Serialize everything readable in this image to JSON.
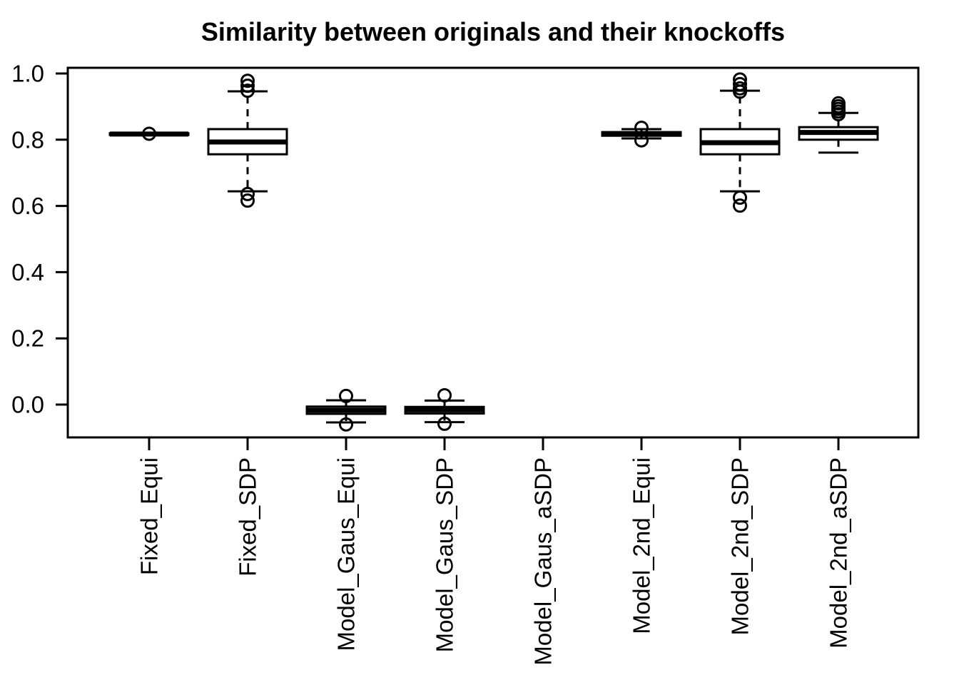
{
  "chart_data": {
    "type": "boxplot",
    "title": "Similarity between originals and their knockoffs",
    "xlabel": "",
    "ylabel": "",
    "grid": false,
    "legend": "none",
    "ylim": [
      -0.1,
      1.02
    ],
    "y_ticks": [
      0.0,
      0.2,
      0.4,
      0.6,
      0.8,
      1.0
    ],
    "y_tick_labels": [
      "0.0",
      "0.2",
      "0.4",
      "0.6",
      "0.8",
      "1.0"
    ],
    "categories": [
      "Fixed_Equi",
      "Fixed_SDP",
      "Model_Gaus_Equi",
      "Model_Gaus_SDP",
      "Model_Gaus_aSDP",
      "Model_2nd_Equi",
      "Model_2nd_SDP",
      "Model_2nd_aSDP"
    ],
    "colors": {
      "stroke": "#000000",
      "box_fill": "#ffffff",
      "background": "#ffffff"
    },
    "boxes": [
      {
        "category": "Fixed_Equi",
        "whisker_low": 0.8145,
        "q1": 0.8145,
        "median": 0.817,
        "q3": 0.8195,
        "whisker_high": 0.8195,
        "outliers": [
          0.818
        ]
      },
      {
        "category": "Fixed_SDP",
        "whisker_low": 0.644,
        "q1": 0.756,
        "median": 0.793,
        "q3": 0.832,
        "whisker_high": 0.946,
        "outliers": [
          0.978,
          0.963,
          0.948,
          0.636,
          0.616
        ]
      },
      {
        "category": "Model_Gaus_Equi",
        "whisker_low": -0.054,
        "q1": -0.028,
        "median": -0.017,
        "q3": -0.006,
        "whisker_high": 0.013,
        "outliers": [
          0.026,
          -0.06
        ]
      },
      {
        "category": "Model_Gaus_SDP",
        "whisker_low": -0.053,
        "q1": -0.027,
        "median": -0.016,
        "q3": -0.007,
        "whisker_high": 0.012,
        "outliers": [
          0.028,
          -0.058
        ]
      },
      {
        "category": "Model_Gaus_aSDP",
        "empty": true
      },
      {
        "category": "Model_2nd_Equi",
        "whisker_low": 0.804,
        "q1": 0.812,
        "median": 0.818,
        "q3": 0.823,
        "whisker_high": 0.832,
        "outliers": [
          0.836,
          0.798
        ]
      },
      {
        "category": "Model_2nd_SDP",
        "whisker_low": 0.644,
        "q1": 0.756,
        "median": 0.791,
        "q3": 0.832,
        "whisker_high": 0.948,
        "outliers": [
          0.982,
          0.968,
          0.955,
          0.945,
          0.625,
          0.601
        ]
      },
      {
        "category": "Model_2nd_aSDP",
        "whisker_low": 0.761,
        "q1": 0.8,
        "median": 0.822,
        "q3": 0.838,
        "whisker_high": 0.881,
        "outliers": [
          0.877,
          0.885,
          0.893,
          0.901,
          0.91
        ]
      }
    ]
  }
}
